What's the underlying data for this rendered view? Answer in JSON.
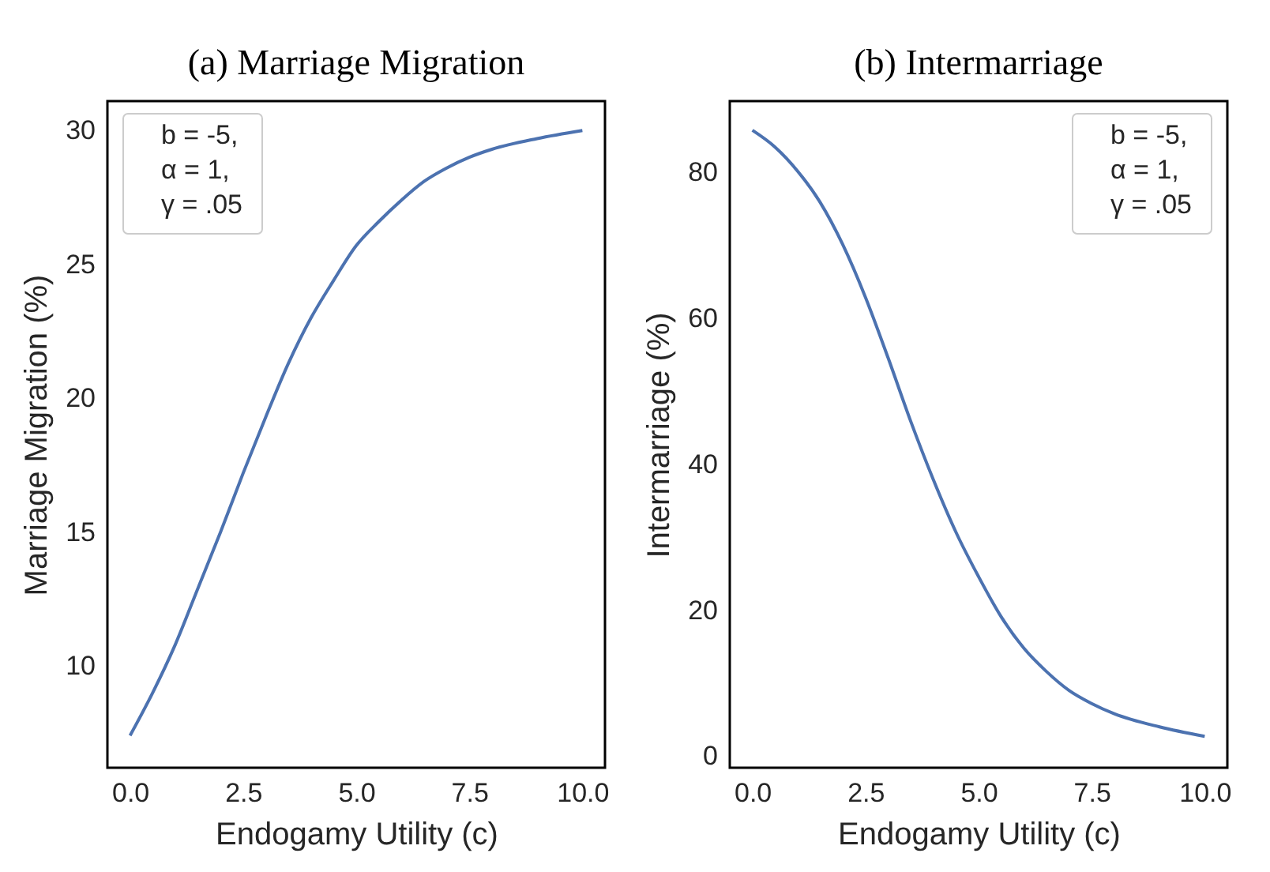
{
  "chart_data": [
    {
      "type": "line",
      "title": "(a) Marriage Migration",
      "xlabel": "Endogamy Utility (c)",
      "ylabel": "Marriage Migration (%)",
      "annotations": [
        "b = -5,\nα = 1,\nγ = .05"
      ],
      "x": [
        0,
        0.5,
        1,
        1.5,
        2,
        2.5,
        3,
        3.5,
        4,
        4.5,
        5,
        5.5,
        6,
        6.5,
        7,
        7.5,
        8,
        9,
        10
      ],
      "series": [
        {
          "color": "#4c72b0",
          "values": [
            7.4,
            9.0,
            10.8,
            12.9,
            15.0,
            17.2,
            19.3,
            21.3,
            23.0,
            24.4,
            25.7,
            26.6,
            27.4,
            28.1,
            28.6,
            29.0,
            29.3,
            29.7,
            30.0
          ]
        }
      ],
      "xlim": [
        -0.5,
        10.5
      ],
      "xticks": [
        {
          "value": 0,
          "label": "0.0"
        },
        {
          "value": 2.5,
          "label": "2.5"
        },
        {
          "value": 5,
          "label": "5.0"
        },
        {
          "value": 7.5,
          "label": "7.5"
        },
        {
          "value": 10,
          "label": "10.0"
        }
      ],
      "ylim": [
        6.2,
        31.1
      ],
      "yticks": [
        10,
        15,
        20,
        25,
        30
      ],
      "grid": false
    },
    {
      "type": "line",
      "title": "(b) Intermarriage",
      "xlabel": "Endogamy Utility (c)",
      "ylabel": "Intermarriage (%)",
      "annotations": [
        "b = -5,\nα = 1,\nγ = .05"
      ],
      "x": [
        0,
        0.5,
        1,
        1.5,
        2,
        2.5,
        3,
        3.5,
        4,
        4.5,
        5,
        5.5,
        6,
        6.5,
        7,
        7.5,
        8,
        9,
        10
      ],
      "series": [
        {
          "color": "#4c72b0",
          "values": [
            85.8,
            83.5,
            80.2,
            75.9,
            70.1,
            62.9,
            54.6,
            45.9,
            37.9,
            30.7,
            24.6,
            19.1,
            14.8,
            11.6,
            9.0,
            7.2,
            5.8,
            4.0,
            2.7
          ]
        }
      ],
      "xlim": [
        -0.5,
        10.5
      ],
      "xticks": [
        {
          "value": 0,
          "label": "0.0"
        },
        {
          "value": 2.5,
          "label": "2.5"
        },
        {
          "value": 5,
          "label": "5.0"
        },
        {
          "value": 7.5,
          "label": "7.5"
        },
        {
          "value": 10,
          "label": "10.0"
        }
      ],
      "ylim": [
        -1.6,
        89.8
      ],
      "yticks": [
        0,
        20,
        40,
        60,
        80
      ],
      "grid": false
    }
  ]
}
